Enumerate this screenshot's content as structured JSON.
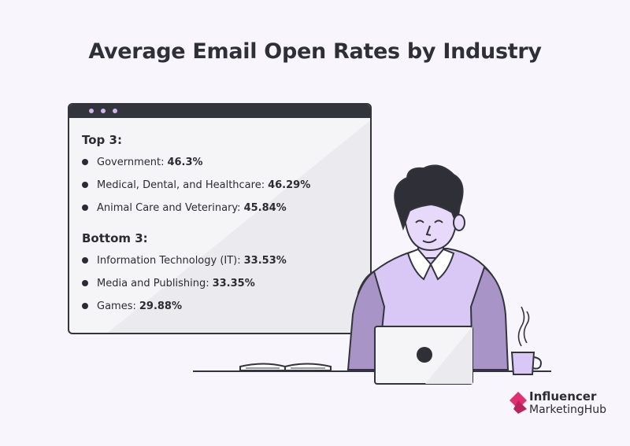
{
  "title": "Average Email Open Rates by Industry",
  "top": {
    "heading": "Top 3:",
    "items": [
      {
        "label": "Government:",
        "value": "46.3%"
      },
      {
        "label": "Medical, Dental, and Healthcare:",
        "value": "46.29%"
      },
      {
        "label": "Animal Care and Veterinary:",
        "value": "45.84%"
      }
    ]
  },
  "bottom": {
    "heading": "Bottom 3:",
    "items": [
      {
        "label": "Information Technology (IT):",
        "value": "33.53%"
      },
      {
        "label": "Media and Publishing:",
        "value": "33.35%"
      },
      {
        "label": "Games:",
        "value": "29.88%"
      }
    ]
  },
  "logo": {
    "line1": "Influencer",
    "line2": "MarketingHub"
  },
  "colors": {
    "background": "#f8f6fc",
    "dark": "#34343c",
    "lavender": "#d9c8f5",
    "purple": "#a994c8",
    "brand_pink": "#e0306f"
  },
  "icons": [
    "window-dots-icon",
    "person-illustration",
    "laptop-icon",
    "coffee-mug-icon",
    "open-book-icon",
    "brand-logo-icon"
  ]
}
